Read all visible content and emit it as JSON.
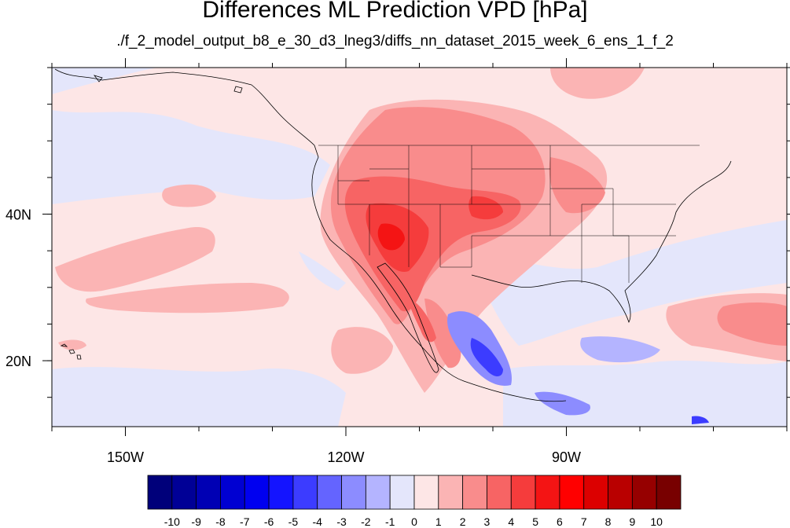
{
  "title": "Differences ML Prediction VPD [hPa]",
  "subtitle": "./f_2_model_output_b8_e_30_d3_lneg3/diffs_nn_dataset_2015_week_6_ens_1_f_2",
  "map": {
    "lon_range": [
      -160,
      -60
    ],
    "lat_range": [
      11,
      60
    ],
    "lon_ticks": [
      {
        "value": -150,
        "label": "150W"
      },
      {
        "value": -120,
        "label": "120W"
      },
      {
        "value": -90,
        "label": "90W"
      }
    ],
    "lat_ticks": [
      {
        "value": 40,
        "label": "40N"
      },
      {
        "value": 20,
        "label": "20N"
      }
    ]
  },
  "colorbar": {
    "labels": [
      "-10",
      "-9",
      "-8",
      "-7",
      "-6",
      "-5",
      "-4",
      "-3",
      "-2",
      "-1",
      "0",
      "1",
      "2",
      "3",
      "4",
      "5",
      "6",
      "7",
      "8",
      "9",
      "10"
    ],
    "colors": [
      "#00007a",
      "#000096",
      "#0000b4",
      "#0000d2",
      "#0000f0",
      "#1414ff",
      "#3c3cff",
      "#6464ff",
      "#8c8cff",
      "#b4b4ff",
      "#e4e6fb",
      "#fde6e6",
      "#fbb4b4",
      "#f98c8c",
      "#f76464",
      "#f53c3c",
      "#f41414",
      "#ff0000",
      "#dc0000",
      "#b90000",
      "#960000",
      "#780000"
    ]
  }
}
